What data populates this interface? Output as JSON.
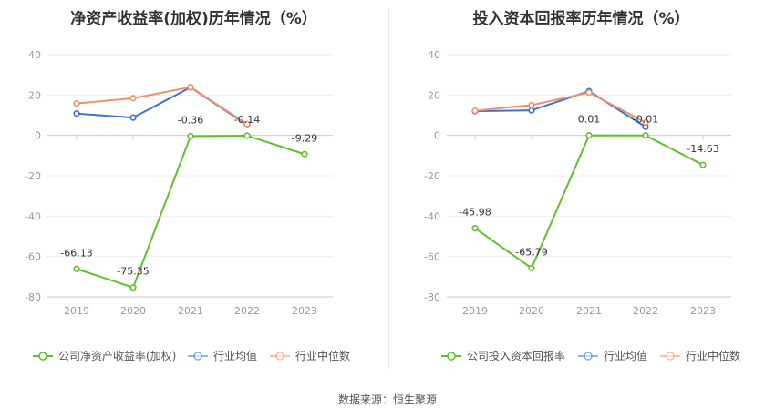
{
  "source": "数据来源：恒生聚源",
  "chart_data": [
    {
      "type": "line",
      "title": "净资产收益率(加权)历年情况（%）",
      "categories": [
        "2019",
        "2020",
        "2021",
        "2022",
        "2023"
      ],
      "ylim": [
        -80,
        40
      ],
      "yticks": [
        40,
        20,
        0,
        -20,
        -40,
        -60,
        -80
      ],
      "grid": true,
      "legend_position": "bottom",
      "series": [
        {
          "name": "公司净资产收益率(加权)",
          "color": "#5fc12e",
          "values": [
            -66.13,
            -75.35,
            -0.36,
            -0.14,
            -9.29
          ],
          "labels": [
            "-66.13",
            "-75.35",
            "-0.36",
            "-0.14",
            "-9.29"
          ]
        },
        {
          "name": "行业均值",
          "color": "#3a74d9",
          "values": [
            10.8,
            8.8,
            23.8,
            5.2,
            null
          ]
        },
        {
          "name": "行业中位数",
          "color": "#f0916a",
          "values": [
            15.8,
            18.4,
            23.9,
            5.6,
            null
          ]
        }
      ]
    },
    {
      "type": "line",
      "title": "投入资本回报率历年情况（%）",
      "categories": [
        "2019",
        "2020",
        "2021",
        "2022",
        "2023"
      ],
      "ylim": [
        -80,
        40
      ],
      "yticks": [
        40,
        20,
        0,
        -20,
        -40,
        -60,
        -80
      ],
      "grid": true,
      "legend_position": "bottom",
      "series": [
        {
          "name": "公司投入资本回报率",
          "color": "#5fc12e",
          "values": [
            -45.98,
            -65.79,
            0.01,
            -0.01,
            -14.63
          ],
          "labels": [
            "-45.98",
            "-65.79",
            "0.01",
            "-0.01",
            "-14.63"
          ]
        },
        {
          "name": "行业均值",
          "color": "#3a74d9",
          "values": [
            12.0,
            12.4,
            21.9,
            4.2,
            null
          ]
        },
        {
          "name": "行业中位数",
          "color": "#f0916a",
          "values": [
            12.2,
            15.0,
            21.2,
            6.4,
            null
          ]
        }
      ]
    }
  ]
}
